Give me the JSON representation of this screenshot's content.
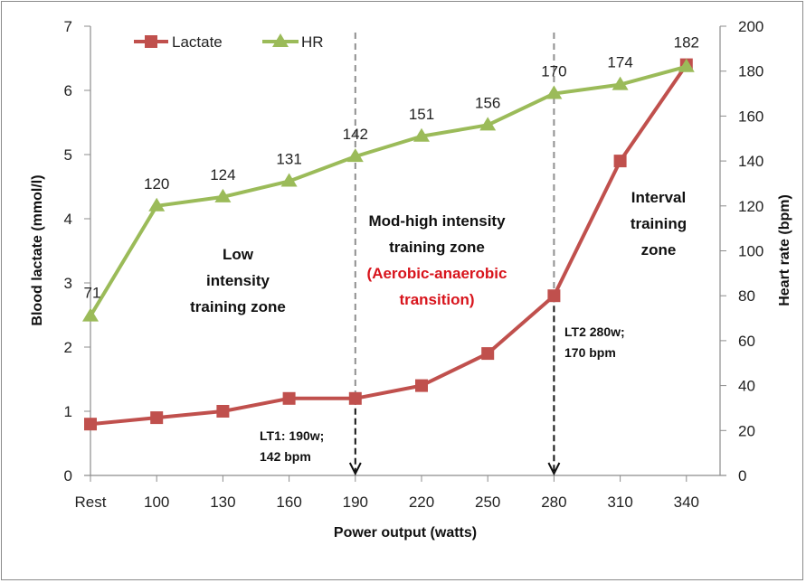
{
  "chart_data": {
    "type": "line",
    "title": "",
    "xlabel": "Power output (watts)",
    "ylabel_left": "Blood lactate (mmol/l)",
    "ylabel_right": "Heart rate (bpm)",
    "categories": [
      "Rest",
      "100",
      "130",
      "160",
      "190",
      "220",
      "250",
      "280",
      "310",
      "340"
    ],
    "ylim_left": [
      0,
      7
    ],
    "yticks_left": [
      "0",
      "1",
      "2",
      "3",
      "4",
      "5",
      "6",
      "7"
    ],
    "ylim_right": [
      0,
      200
    ],
    "yticks_right": [
      "0",
      "20",
      "40",
      "60",
      "80",
      "100",
      "120",
      "140",
      "160",
      "180",
      "200"
    ],
    "grid": false,
    "legend_position": "top-left",
    "series": [
      {
        "name": "Lactate",
        "axis": "left",
        "color": "#c0504d",
        "marker": "square",
        "values": [
          0.8,
          0.9,
          1.0,
          1.2,
          1.2,
          1.4,
          1.9,
          2.8,
          4.9,
          6.4
        ]
      },
      {
        "name": "HR",
        "axis": "right",
        "color": "#9bbb59",
        "marker": "triangle",
        "values": [
          71,
          120,
          124,
          131,
          142,
          151,
          156,
          170,
          174,
          182
        ],
        "data_labels": [
          "71",
          "120",
          "124",
          "131",
          "142",
          "151",
          "156",
          "170",
          "174",
          "182"
        ]
      }
    ],
    "thresholds": [
      {
        "name": "LT1",
        "category": "190",
        "label_lines": [
          "LT1: 190w;",
          "142 bpm"
        ]
      },
      {
        "name": "LT2",
        "category": "280",
        "label_lines": [
          "LT2 280w;",
          "170 bpm"
        ]
      }
    ],
    "zones": [
      {
        "name": "low",
        "lines": [
          "Low",
          "intensity",
          "training zone"
        ],
        "red_lines": []
      },
      {
        "name": "mod-high",
        "lines": [
          "Mod-high intensity",
          "training zone"
        ],
        "red_lines": [
          "(Aerobic-anaerobic",
          "transition)"
        ]
      },
      {
        "name": "interval",
        "lines": [
          "Interval",
          "training",
          "zone"
        ],
        "red_lines": []
      }
    ]
  }
}
